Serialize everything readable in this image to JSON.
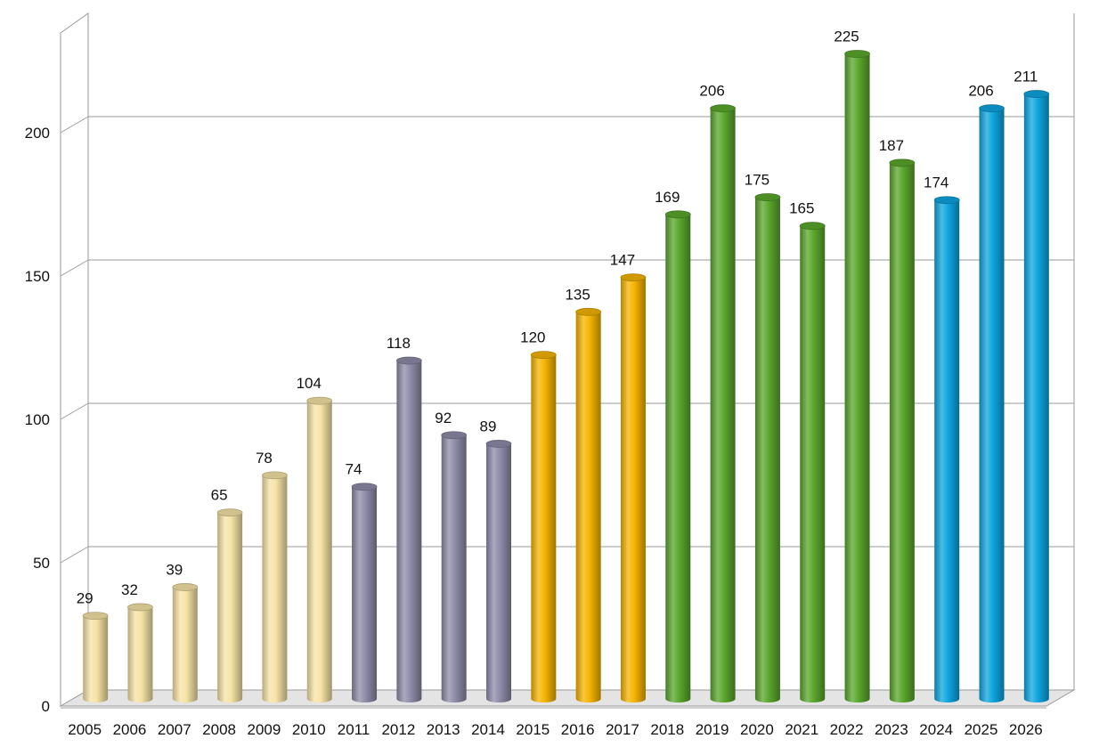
{
  "chart_data": {
    "type": "bar",
    "title": "",
    "xlabel": "",
    "ylabel": "",
    "categories": [
      "2005",
      "2006",
      "2007",
      "2008",
      "2009",
      "2010",
      "2011",
      "2012",
      "2013",
      "2014",
      "2015",
      "2016",
      "2017",
      "2018",
      "2019",
      "2020",
      "2021",
      "2022",
      "2023",
      "2024",
      "2025",
      "2026"
    ],
    "values": [
      29,
      32,
      39,
      65,
      78,
      104,
      74,
      118,
      92,
      89,
      120,
      135,
      147,
      169,
      206,
      175,
      165,
      225,
      187,
      174,
      206,
      211
    ],
    "data_labels": [
      "29",
      "32",
      "39",
      "65",
      "78",
      "104",
      "74",
      "118",
      "92",
      "89",
      "120",
      "135",
      "147",
      "169",
      "206",
      "175",
      "165",
      "225",
      "187",
      "174",
      "206",
      "211"
    ],
    "ylim": [
      0,
      225
    ],
    "yticks": [
      0,
      50,
      100,
      150,
      200
    ],
    "ytick_labels": [
      "0",
      "50",
      "100",
      "150",
      "200"
    ],
    "grid": true,
    "legend": "none",
    "bar_style": "3d-cylinder",
    "color_groups": [
      {
        "from": "2005",
        "to": "2010",
        "color": "#f6e3a6"
      },
      {
        "from": "2011",
        "to": "2014",
        "color": "#8e8ca8"
      },
      {
        "from": "2015",
        "to": "2017",
        "color": "#f5b400"
      },
      {
        "from": "2018",
        "to": "2023",
        "color": "#5aa72c"
      },
      {
        "from": "2024",
        "to": "2026",
        "color": "#0ea5e0"
      }
    ]
  }
}
